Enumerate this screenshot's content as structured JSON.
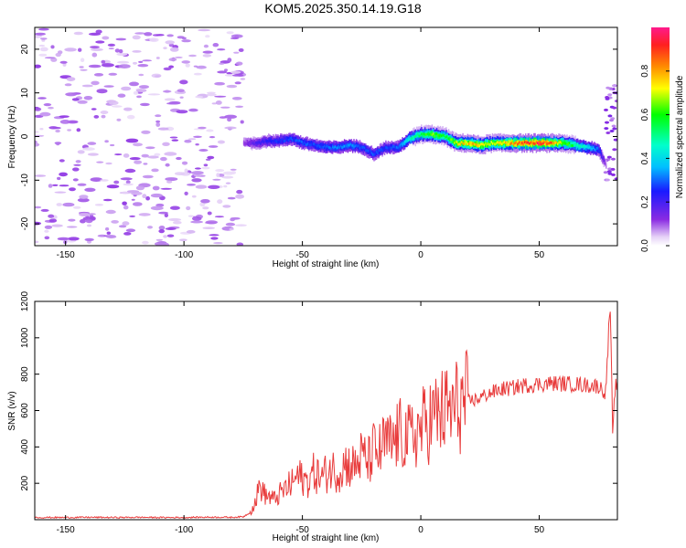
{
  "title": "KOM5.2025.350.14.19.G18",
  "chart_data": [
    {
      "type": "heatmap",
      "xlabel": "Height of straight line (km)",
      "ylabel": "Frequency (Hz)",
      "xlim": [
        -163,
        83
      ],
      "ylim": [
        -25,
        25
      ],
      "xticks": [
        -150,
        -100,
        -50,
        0,
        50
      ],
      "yticks": [
        -20,
        -10,
        0,
        10,
        20
      ],
      "colorbar": {
        "label": "Normalized spectral amplitude",
        "range": [
          0,
          1
        ],
        "ticks": [
          "0.0",
          "0.2",
          "0.4",
          "0.6",
          "0.8"
        ],
        "tick_values": [
          0,
          0.2,
          0.4,
          0.6,
          0.8
        ]
      },
      "ridge": {
        "height_km": [
          -75,
          -70,
          -65,
          -60,
          -55,
          -50,
          -45,
          -40,
          -35,
          -30,
          -25,
          -20,
          -15,
          -10,
          -5,
          0,
          5,
          10,
          15,
          20,
          25,
          30,
          35,
          40,
          45,
          50,
          55,
          60,
          65,
          70,
          75,
          78
        ],
        "frequency_hz": [
          -1.5,
          -1.5,
          -1,
          -1,
          -0.5,
          -1.5,
          -2,
          -2.5,
          -2.5,
          -2,
          -2.5,
          -4,
          -2.5,
          -2.5,
          -0.5,
          0.5,
          0.5,
          0,
          -1.5,
          -1.5,
          -2,
          -1.5,
          -1.5,
          -1.5,
          -1.5,
          -1.5,
          -1.5,
          -1.5,
          -2,
          -2.5,
          -3,
          -6.5
        ],
        "amplitude": [
          0.12,
          0.2,
          0.25,
          0.28,
          0.3,
          0.32,
          0.3,
          0.33,
          0.35,
          0.35,
          0.3,
          0.3,
          0.3,
          0.32,
          0.5,
          0.6,
          0.7,
          0.6,
          0.75,
          0.85,
          0.8,
          0.75,
          0.8,
          0.9,
          0.95,
          1.0,
          0.9,
          0.7,
          0.55,
          0.45,
          0.3,
          0.1
        ]
      }
    },
    {
      "type": "line",
      "xlabel": "Height of straight line (km)",
      "ylabel": "SNR (v/v)",
      "xlim": [
        -163,
        83
      ],
      "ylim": [
        0,
        1200
      ],
      "xticks": [
        -150,
        -100,
        -50,
        0,
        50
      ],
      "yticks": [
        200,
        400,
        600,
        800,
        1000,
        1200
      ],
      "series": [
        {
          "name": "SNR",
          "color": "#e83b3b",
          "x": [
            -163,
            -150,
            -140,
            -130,
            -120,
            -110,
            -100,
            -90,
            -80,
            -75,
            -72,
            -70,
            -68,
            -66,
            -62,
            -58,
            -55,
            -52,
            -48,
            -45,
            -42,
            -38,
            -35,
            -32,
            -28,
            -25,
            -22,
            -20,
            -18,
            -15,
            -12,
            -10,
            -7,
            -5,
            -2,
            0,
            3,
            5,
            8,
            10,
            13,
            15,
            18,
            20,
            23,
            25,
            28,
            30,
            33,
            35,
            38,
            40,
            45,
            50,
            55,
            60,
            65,
            70,
            75,
            78,
            80,
            81,
            82,
            83
          ],
          "y": [
            12,
            12,
            13,
            12,
            13,
            12,
            12,
            14,
            13,
            16,
            40,
            90,
            190,
            140,
            110,
            160,
            190,
            240,
            210,
            260,
            230,
            280,
            260,
            310,
            290,
            350,
            320,
            380,
            360,
            420,
            410,
            460,
            470,
            440,
            480,
            500,
            540,
            560,
            580,
            590,
            600,
            620,
            640,
            650,
            660,
            670,
            690,
            700,
            710,
            720,
            720,
            730,
            740,
            745,
            750,
            748,
            745,
            740,
            735,
            700,
            1180,
            450,
            720,
            760
          ]
        }
      ]
    }
  ]
}
